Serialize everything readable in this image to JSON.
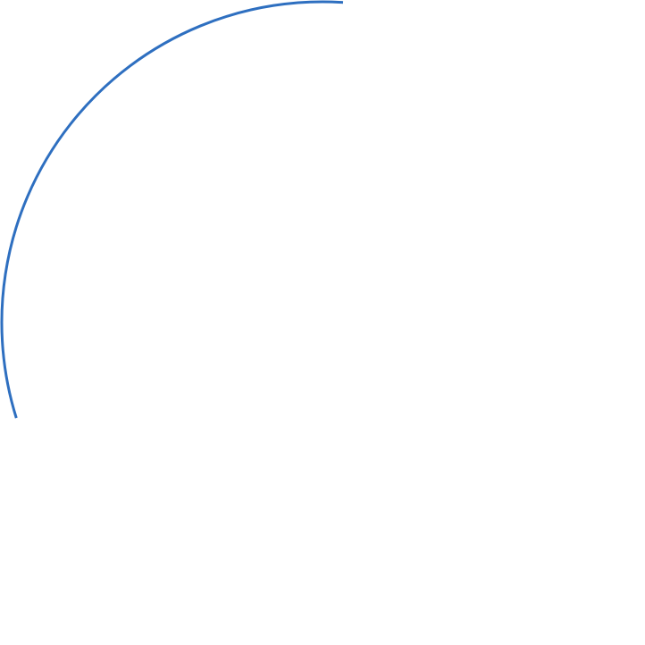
{
  "arc": {
    "stroke_color": "#2E6FC0"
  }
}
